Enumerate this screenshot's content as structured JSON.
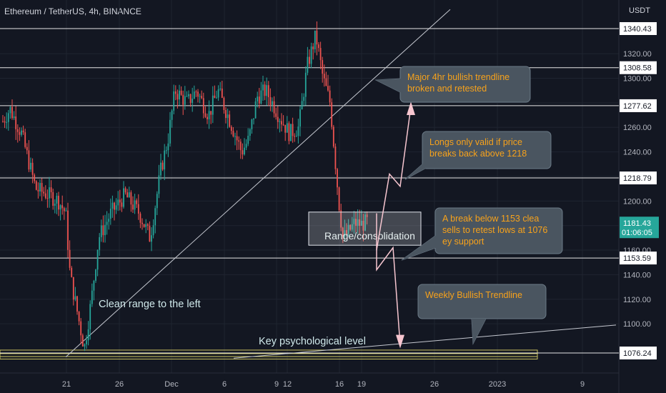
{
  "header": {
    "symbol": "Ethereum / TetherUS, 4h, BINANCE",
    "currency": "USDT"
  },
  "chart_data": {
    "type": "candlestick",
    "ylim": [
      1060,
      1356
    ],
    "y_ticks": [
      1100,
      1120,
      1140,
      1160,
      1180,
      1200,
      1220,
      1240,
      1260,
      1280,
      1300,
      1320
    ],
    "y_tick_labels": [
      "1100.00",
      "1120.00",
      "1140.00",
      "1160.00",
      "",
      "1200.00",
      "",
      "1240.00",
      "1260.00",
      "",
      "1300.00",
      "1320.00"
    ],
    "x_ticks": [
      "21",
      "26",
      "Dec",
      "6",
      "9",
      "12",
      "16",
      "19",
      "26",
      "2023",
      "9"
    ],
    "levels": [
      1340.43,
      1308.58,
      1277.62,
      1218.79,
      1153.59,
      1076.24
    ],
    "level_labels": [
      "1340.43",
      "1308.58",
      "1277.62",
      "1218.79",
      "1153.59",
      "1076.24"
    ],
    "current_price": {
      "value": 1181.43,
      "label": "1181.43",
      "countdown": "01:06:05"
    },
    "range_box": {
      "low": 1164,
      "high": 1191,
      "label": "Range/consolidation"
    },
    "annotations": [
      "Major 4hr bullish trendline broken and retested",
      "Longs only valid if price breaks back above 1218",
      "A break below 1153 clean sells to retest lows at 1076 key support",
      "Weekly Bullish Trendline"
    ],
    "text_labels": [
      "Clean range to the left",
      "Key psychological level"
    ],
    "colors": {
      "bull": "#26a69a",
      "bear": "#ef5350",
      "price_label": "#26a69a",
      "annotation_text": "#f7a21b",
      "callout_bg": "#4a5560",
      "projection": "#f7c6d0"
    }
  }
}
